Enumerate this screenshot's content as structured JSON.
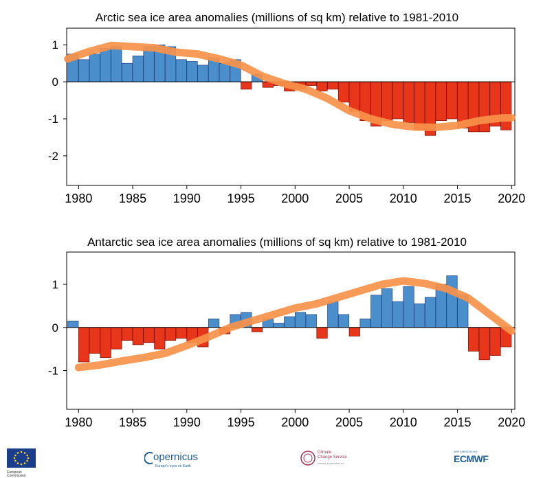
{
  "chart_data": [
    {
      "type": "bar",
      "title": "Arctic sea ice area anomalies (millions of sq km) relative to 1981-2010",
      "xlabel": "",
      "ylabel": "",
      "xlim": [
        1978.9,
        2020.3
      ],
      "ylim": [
        -2.8,
        1.45
      ],
      "x_ticks": [
        "1980",
        "1985",
        "1990",
        "1995",
        "2000",
        "2005",
        "2010",
        "2015",
        "2020"
      ],
      "y_ticks": [
        "1",
        "0",
        "-1",
        "-2"
      ],
      "grid": false,
      "colors": {
        "positive": "#4a8fcc",
        "positive_annual": "#1f3f80",
        "negative": "#e8361a",
        "negative_annual": "#7a0c00",
        "trend": "#f7924a"
      },
      "series": [
        {
          "type": "bar",
          "years": [
            1979,
            1980,
            1981,
            1982,
            1983,
            1984,
            1985,
            1986,
            1987,
            1988,
            1989,
            1990,
            1991,
            1992,
            1993,
            1994,
            1995,
            1996,
            1997,
            1998,
            1999,
            2000,
            2001,
            2002,
            2003,
            2004,
            2005,
            2006,
            2007,
            2008,
            2009,
            2010,
            2011,
            2012,
            2013,
            2014,
            2015,
            2016,
            2017,
            2018,
            2019
          ],
          "values": [
            0.75,
            0.6,
            0.75,
            0.9,
            0.95,
            0.5,
            0.7,
            0.95,
            1.0,
            0.95,
            0.6,
            0.55,
            0.45,
            0.65,
            0.5,
            0.6,
            -0.2,
            0.2,
            -0.15,
            -0.1,
            -0.25,
            -0.2,
            -0.1,
            -0.25,
            -0.2,
            -0.55,
            -0.8,
            -1.05,
            -1.2,
            -1.05,
            -1.0,
            -1.1,
            -1.3,
            -1.45,
            -1.05,
            -1.0,
            -1.25,
            -1.35,
            -1.35,
            -1.2,
            -1.3
          ]
        },
        {
          "type": "line",
          "x": [
            1979,
            1981,
            1983,
            1985,
            1987,
            1989,
            1991,
            1993,
            1995,
            1997,
            1999,
            2001,
            2003,
            2005,
            2007,
            2009,
            2011,
            2013,
            2015,
            2017,
            2019,
            2020
          ],
          "values": [
            0.62,
            0.82,
            0.98,
            0.95,
            0.92,
            0.8,
            0.75,
            0.62,
            0.45,
            0.15,
            -0.05,
            -0.2,
            -0.45,
            -0.78,
            -1.0,
            -1.15,
            -1.22,
            -1.23,
            -1.18,
            -1.05,
            -0.98,
            -0.97
          ]
        }
      ]
    },
    {
      "type": "bar",
      "title": "Antarctic sea ice area anomalies (millions of sq km) relative to 1981-2010",
      "xlabel": "",
      "ylabel": "",
      "xlim": [
        1978.9,
        2020.3
      ],
      "ylim": [
        -1.9,
        1.75
      ],
      "x_ticks": [
        "1980",
        "1985",
        "1990",
        "1995",
        "2000",
        "2005",
        "2010",
        "2015",
        "2020"
      ],
      "y_ticks": [
        "1",
        "0",
        "-1"
      ],
      "grid": false,
      "colors": {
        "positive": "#4a8fcc",
        "positive_annual": "#1f3f80",
        "negative": "#e8361a",
        "negative_annual": "#7a0c00",
        "trend": "#f7924a"
      },
      "series": [
        {
          "type": "bar",
          "years": [
            1979,
            1980,
            1981,
            1982,
            1983,
            1984,
            1985,
            1986,
            1987,
            1988,
            1989,
            1990,
            1991,
            1992,
            1993,
            1994,
            1995,
            1996,
            1997,
            1998,
            1999,
            2000,
            2001,
            2002,
            2003,
            2004,
            2005,
            2006,
            2007,
            2008,
            2009,
            2010,
            2011,
            2012,
            2013,
            2014,
            2015,
            2016,
            2017,
            2018,
            2019
          ],
          "values": [
            0.15,
            -0.8,
            -0.6,
            -0.7,
            -0.5,
            -0.3,
            -0.4,
            -0.35,
            -0.5,
            -0.3,
            -0.25,
            -0.35,
            -0.45,
            0.2,
            -0.15,
            0.3,
            0.35,
            -0.1,
            0.2,
            0.1,
            0.25,
            0.35,
            0.3,
            -0.25,
            0.6,
            0.3,
            -0.2,
            0.2,
            0.75,
            0.9,
            0.6,
            0.95,
            0.55,
            0.7,
            1.0,
            1.2,
            0.75,
            -0.55,
            -0.75,
            -0.65,
            -0.45
          ]
        },
        {
          "type": "line",
          "x": [
            1980,
            1982,
            1984,
            1986,
            1988,
            1990,
            1992,
            1994,
            1996,
            1998,
            2000,
            2002,
            2004,
            2006,
            2008,
            2010,
            2012,
            2014,
            2016,
            2018,
            2020
          ],
          "values": [
            -0.93,
            -0.87,
            -0.78,
            -0.7,
            -0.6,
            -0.42,
            -0.22,
            0.0,
            0.15,
            0.3,
            0.45,
            0.55,
            0.7,
            0.85,
            1.0,
            1.08,
            1.02,
            0.9,
            0.68,
            0.3,
            -0.08
          ]
        }
      ]
    }
  ],
  "footer": {
    "ec_line1": "European",
    "ec_line2": "Commission",
    "copernicus_name": "opernicus",
    "copernicus_tagline": "Europe's eyes on Earth",
    "c3s_line1": "Climate",
    "c3s_line2": "Change Service",
    "c3s_url": "climate.copernicus.eu",
    "ecmwf_small": "IMPLEMENTED BY",
    "ecmwf_name": "ECMWF"
  }
}
